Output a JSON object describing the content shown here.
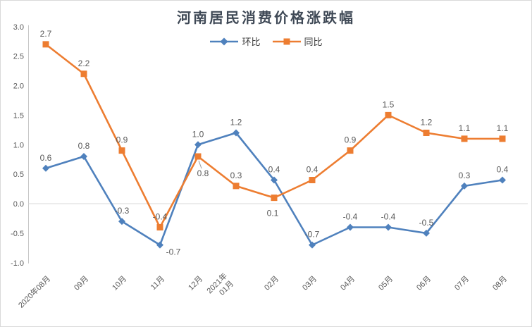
{
  "chart_data": {
    "type": "line",
    "title": "河南居民消费价格涨跌幅",
    "categories": [
      "2020年08月",
      "09月",
      "10月",
      "11月",
      "12月",
      "2021年\n01月",
      "02月",
      "03月",
      "04月",
      "05月",
      "06月",
      "07月",
      "08月"
    ],
    "series": [
      {
        "name": "环比",
        "color": "#4F81BD",
        "marker": "diamond",
        "values": [
          0.6,
          0.8,
          -0.3,
          -0.7,
          1.0,
          1.2,
          0.4,
          -0.7,
          -0.4,
          -0.4,
          -0.5,
          0.3,
          0.4
        ],
        "label_pos": [
          "above",
          "above",
          "above",
          "below-right",
          "above",
          "above",
          "above",
          "above",
          "above",
          "above",
          "above",
          "above",
          "above"
        ]
      },
      {
        "name": "同比",
        "color": "#ED7D31",
        "marker": "square",
        "values": [
          2.7,
          2.2,
          0.9,
          -0.4,
          0.8,
          0.3,
          0.1,
          0.4,
          0.9,
          1.5,
          1.2,
          1.1,
          1.1
        ],
        "label_pos": [
          "above",
          "above",
          "above",
          "above",
          "below-leader",
          "above",
          "below",
          "above",
          "above",
          "above",
          "above",
          "above",
          "above"
        ]
      }
    ],
    "ylim": [
      -1.0,
      3.0
    ],
    "yticks": [
      3.0,
      2.5,
      2.0,
      1.5,
      1.0,
      0.5,
      0.0,
      -0.5,
      -1.0
    ],
    "legend_position": "top-center",
    "grid": "zero-line-only",
    "colors": {
      "axis_line": "#c6c6c6",
      "grid_line": "#d9d9d9",
      "tick_text": "#595959",
      "data_label_text": "#595959",
      "title_text": "#3f4956",
      "leader_line": "#999999"
    }
  }
}
